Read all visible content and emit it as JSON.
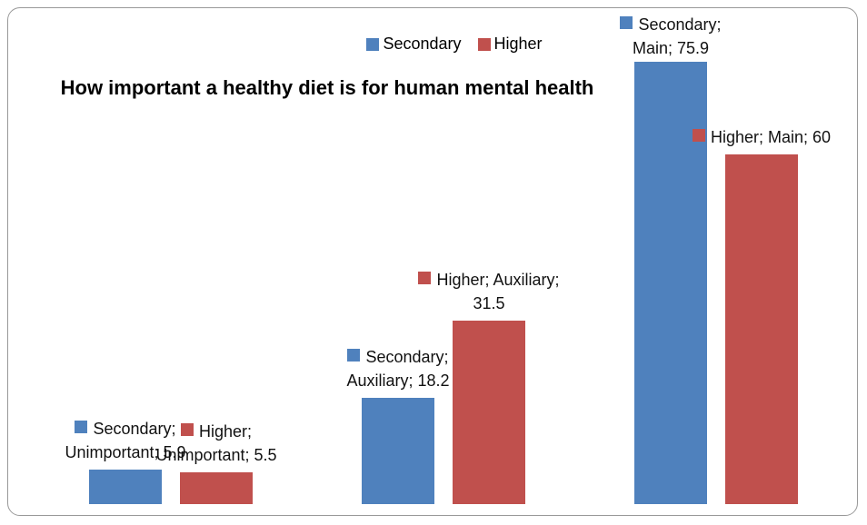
{
  "chart_data": {
    "type": "bar",
    "title": "How important a healthy diet is for human mental health",
    "categories": [
      "Unimportant",
      "Auxiliary",
      "Main"
    ],
    "series": [
      {
        "name": "Secondary",
        "color": "#4f81bd",
        "values": [
          5.9,
          18.2,
          75.9
        ],
        "value_labels": [
          "Secondary; Unimportant; 5.9",
          "Secondary; Auxiliary; 18.2",
          "Secondary; Main; 75.9"
        ]
      },
      {
        "name": "Higher",
        "color": "#c0504d",
        "values": [
          5.5,
          31.5,
          60
        ],
        "value_labels": [
          "Higher; Unimportant; 5.5",
          "Higher; Auxiliary; 31.5",
          "Higher; Main; 60"
        ]
      }
    ],
    "legend": "top"
  }
}
